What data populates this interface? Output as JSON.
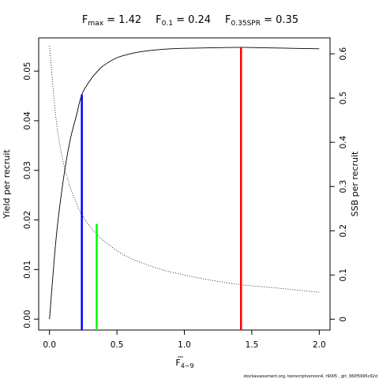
{
  "title": {
    "fmax_label": "F",
    "fmax_sub": "max",
    "fmax_value": " = 1.42",
    "f01_label": "F",
    "f01_sub": "0.1",
    "f01_value": " = 0.24",
    "f035_label": "F",
    "f035_sub": "0.35SPR",
    "f035_value": " = 0.35"
  },
  "footer": "stockassessment.org, testscriptversion4, r9005 , git: 360f5995c92d",
  "chart_data": {
    "type": "line",
    "xlabel_base": "F",
    "xlabel_sub": "4−9",
    "ylabel_left": "Yield per recruit",
    "ylabel_right": "SSB per recruit",
    "xlim": [
      -0.08,
      2.08
    ],
    "ylim_left": [
      -0.0022,
      0.0567
    ],
    "ylim_right": [
      -0.0245,
      0.636
    ],
    "x_ticks": [
      0.0,
      0.5,
      1.0,
      1.5,
      2.0
    ],
    "x_tick_labels": [
      "0.0",
      "0.5",
      "1.0",
      "1.5",
      "2.0"
    ],
    "y_left_ticks": [
      0.0,
      0.01,
      0.02,
      0.03,
      0.04,
      0.05
    ],
    "y_left_tick_labels": [
      "0.00",
      "0.01",
      "0.02",
      "0.03",
      "0.04",
      "0.05"
    ],
    "y_right_ticks": [
      0.0,
      0.1,
      0.2,
      0.3,
      0.4,
      0.5,
      0.6
    ],
    "y_right_tick_labels": [
      "0",
      "0.1",
      "0.2",
      "0.3",
      "0.4",
      "0.5",
      "0.6"
    ],
    "yield_curve": {
      "axis": "left",
      "x": [
        0.0,
        0.05,
        0.1,
        0.15,
        0.2,
        0.24,
        0.3,
        0.35,
        0.4,
        0.5,
        0.6,
        0.7,
        0.8,
        0.9,
        1.0,
        1.2,
        1.42,
        1.6,
        1.8,
        2.0
      ],
      "y": [
        0.0,
        0.0165,
        0.0276,
        0.0357,
        0.0411,
        0.0453,
        0.0481,
        0.0498,
        0.0511,
        0.0527,
        0.0535,
        0.054,
        0.0543,
        0.0545,
        0.0546,
        0.0547,
        0.0548,
        0.0547,
        0.0546,
        0.0545
      ],
      "color": "#000000"
    },
    "ssb_curve": {
      "axis": "right",
      "x": [
        0.0,
        0.05,
        0.1,
        0.15,
        0.2,
        0.24,
        0.3,
        0.35,
        0.4,
        0.5,
        0.6,
        0.8,
        1.0,
        1.2,
        1.42,
        1.6,
        1.8,
        2.0
      ],
      "y": [
        0.618,
        0.45,
        0.358,
        0.302,
        0.262,
        0.236,
        0.21,
        0.192,
        0.178,
        0.155,
        0.138,
        0.115,
        0.1,
        0.088,
        0.078,
        0.073,
        0.067,
        0.061
      ],
      "color": "#000000",
      "style": "dotted"
    },
    "reference_lines": [
      {
        "name": "Fmax",
        "x": 1.42,
        "y_top": 0.0548,
        "axis": "left",
        "color": "#ff0000"
      },
      {
        "name": "F0.1",
        "x": 0.24,
        "y_top": 0.0453,
        "axis": "left",
        "color": "#0000ff"
      },
      {
        "name": "F0.35SPR",
        "x": 0.35,
        "y_top": 0.0192,
        "axis": "left",
        "color": "#00ff00"
      }
    ]
  }
}
